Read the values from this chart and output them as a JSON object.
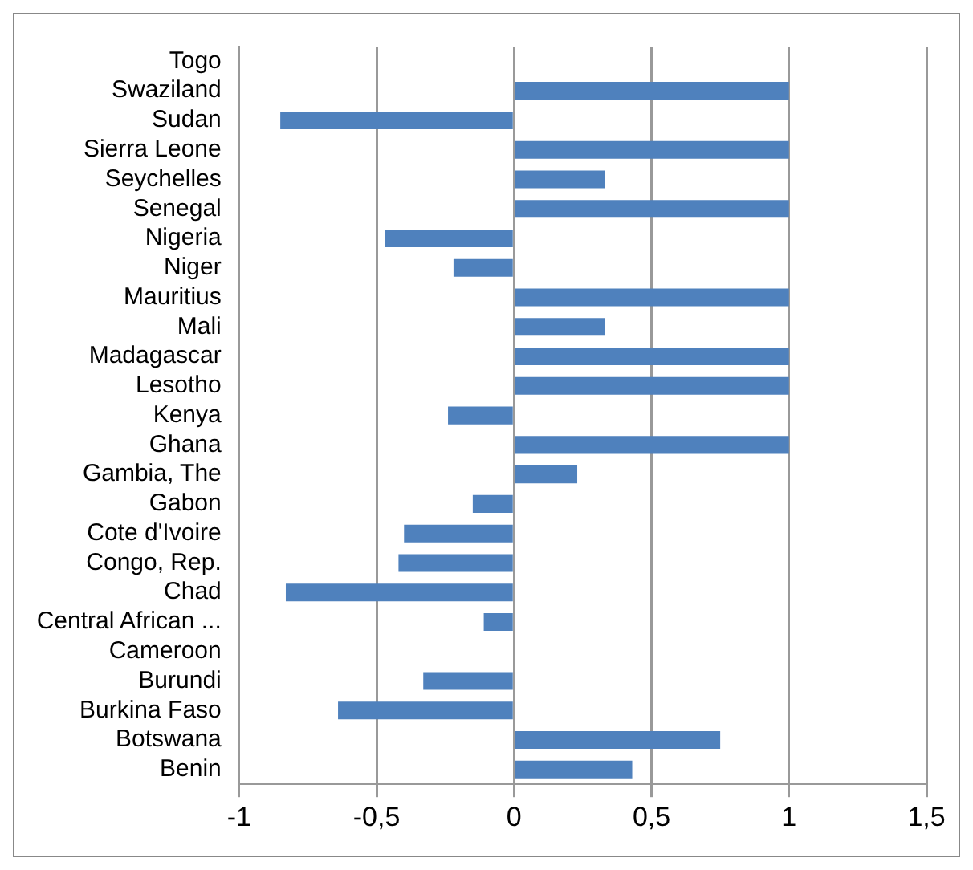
{
  "chart_data": {
    "type": "bar",
    "orientation": "horizontal",
    "categories": [
      "Togo",
      "Swaziland",
      "Sudan",
      "Sierra Leone",
      "Seychelles",
      "Senegal",
      "Nigeria",
      "Niger",
      "Mauritius",
      "Mali",
      "Madagascar",
      "Lesotho",
      "Kenya",
      "Ghana",
      "Gambia, The",
      "Gabon",
      "Cote d'Ivoire",
      "Congo, Rep.",
      "Chad",
      "Central African ...",
      "Cameroon",
      "Burundi",
      "Burkina Faso",
      "Botswana",
      "Benin"
    ],
    "values": [
      0,
      1,
      -0.85,
      1,
      0.33,
      1,
      -0.47,
      -0.22,
      1,
      0.33,
      1,
      1,
      -0.24,
      1,
      0.23,
      -0.15,
      -0.4,
      -0.42,
      -0.83,
      -0.11,
      0,
      -0.33,
      -0.64,
      0.75,
      0.43
    ],
    "color": "#4f81bd",
    "xlim": [
      -1,
      1.5
    ],
    "xticks": [
      {
        "value": -1,
        "label": "-1"
      },
      {
        "value": -0.5,
        "label": "-0,5"
      },
      {
        "value": 0,
        "label": "0"
      },
      {
        "value": 0.5,
        "label": "0,5"
      },
      {
        "value": 1,
        "label": "1"
      },
      {
        "value": 1.5,
        "label": "1,5"
      }
    ],
    "grid": "x",
    "legend": false
  }
}
